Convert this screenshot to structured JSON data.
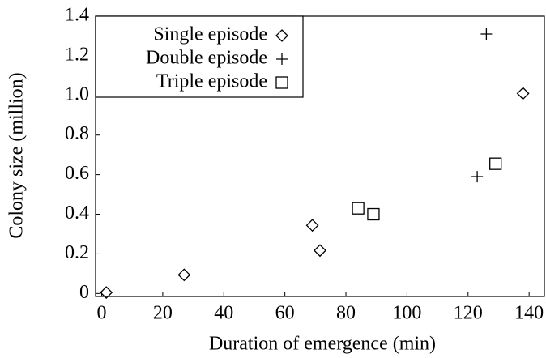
{
  "chart_data": {
    "type": "scatter",
    "x_label": "Duration of emergence (min)",
    "y_label": "Colony size (million)",
    "xlim": [
      -2,
      145
    ],
    "ylim": [
      -0.015,
      1.4
    ],
    "xticks": [
      0,
      20,
      40,
      60,
      80,
      100,
      120,
      140
    ],
    "yticks": [
      0,
      0.2,
      0.4,
      0.6,
      0.8,
      {
        "value": 1.0,
        "label": "1.0"
      },
      1.2,
      1.4
    ],
    "legend": "upper left",
    "grid": false,
    "series": [
      {
        "name": "Single episode",
        "marker": "diamond",
        "color": "#000000",
        "x": [
          1.5,
          27,
          69,
          71.5,
          138
        ],
        "values": [
          0.005,
          0.094,
          0.344,
          0.217,
          1.01
        ]
      },
      {
        "name": "Double episode",
        "marker": "plus",
        "color": "#000000",
        "x": [
          123,
          126
        ],
        "values": [
          0.59,
          1.31
        ]
      },
      {
        "name": "Triple episode",
        "marker": "square",
        "color": "#000000",
        "x": [
          84,
          89,
          129
        ],
        "values": [
          0.43,
          0.4,
          0.655
        ]
      }
    ]
  }
}
